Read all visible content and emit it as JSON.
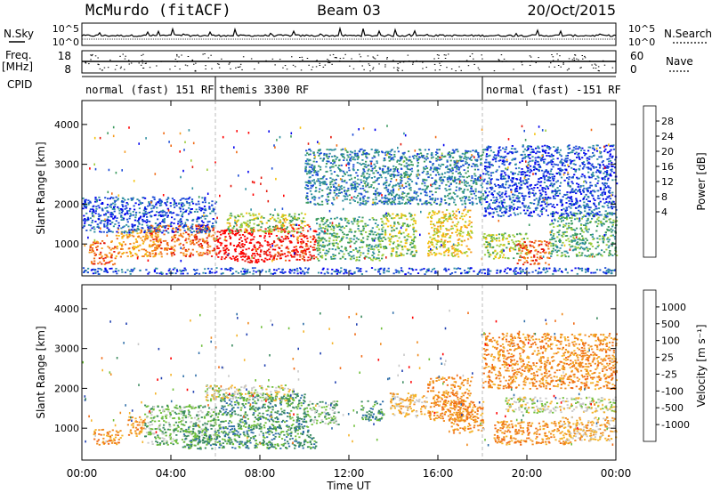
{
  "header": {
    "station": "McMurdo (fitACF)",
    "beam": "Beam 03",
    "date": "20/Oct/2015"
  },
  "top_panels": {
    "nsky_label": "N.Sky",
    "nsky_ticks": [
      "10^5",
      "10^0"
    ],
    "nsearch_label": "N.Search",
    "nsearch_ticks": [
      "10^5",
      "10^0"
    ],
    "freq_label": "Freq.",
    "freq_unit": "[MHz]",
    "freq_ticks": [
      "18",
      "8"
    ],
    "nave_label": "Nave",
    "nave_ticks": [
      "60",
      "0"
    ],
    "cpid_label": "CPID",
    "modes": [
      {
        "label": "normal (fast) 151 RF",
        "start": 0,
        "end": 6
      },
      {
        "label": "themis 3300 RF",
        "start": 6,
        "end": 18
      },
      {
        "label": "normal (fast) -151 RF",
        "start": 18,
        "end": 24
      }
    ]
  },
  "chart_data": [
    {
      "type": "heatmap",
      "name": "power",
      "ylabel": "Slant Range [km]",
      "ylim": [
        200,
        4600
      ],
      "yticks": [
        1000,
        2000,
        3000,
        4000
      ],
      "xlim": [
        0,
        24
      ],
      "colorbar": {
        "label": "Power [dB]",
        "ticks": [
          "28",
          "24",
          "20",
          "16",
          "12",
          "8",
          "4"
        ],
        "colors": [
          "#0000ee",
          "#1a4bd6",
          "#2f8fa0",
          "#3a9a5e",
          "#9bcc3a",
          "#f4c20d",
          "#f59a1e",
          "#f06a14",
          "#e3170a",
          "#ff0000"
        ]
      },
      "bands": [
        {
          "x0": 0.3,
          "x1": 1.5,
          "y0": 500,
          "y1": 1100,
          "level": 7
        },
        {
          "x0": 1.5,
          "x1": 3.5,
          "y0": 700,
          "y1": 1400,
          "level": 6
        },
        {
          "x0": 3.0,
          "x1": 6.0,
          "y0": 700,
          "y1": 1500,
          "level": 7
        },
        {
          "x0": 6.0,
          "x1": 8.5,
          "y0": 550,
          "y1": 1400,
          "level": 9
        },
        {
          "x0": 8.5,
          "x1": 10.5,
          "y0": 600,
          "y1": 1500,
          "level": 8
        },
        {
          "x0": 6.5,
          "x1": 10.0,
          "y0": 1300,
          "y1": 1800,
          "level": 4
        },
        {
          "x0": 10.5,
          "x1": 13.5,
          "y0": 600,
          "y1": 1700,
          "level": 3
        },
        {
          "x0": 13.5,
          "x1": 15.0,
          "y0": 700,
          "y1": 1800,
          "level": 4
        },
        {
          "x0": 15.5,
          "x1": 17.5,
          "y0": 700,
          "y1": 1900,
          "level": 5
        },
        {
          "x0": 18.0,
          "x1": 20.0,
          "y0": 650,
          "y1": 1300,
          "level": 4
        },
        {
          "x0": 19.5,
          "x1": 21.0,
          "y0": 500,
          "y1": 1100,
          "level": 7
        },
        {
          "x0": 21.0,
          "x1": 24.0,
          "y0": 700,
          "y1": 1800,
          "level": 3
        },
        {
          "x0": 0.0,
          "x1": 6.0,
          "y0": 1300,
          "y1": 2200,
          "level": 1
        },
        {
          "x0": 10.0,
          "x1": 18.0,
          "y0": 2000,
          "y1": 3400,
          "level": 2
        },
        {
          "x0": 18.0,
          "x1": 24.0,
          "y0": 1700,
          "y1": 3500,
          "level": 1
        },
        {
          "x0": 0.0,
          "x1": 24.0,
          "y0": 260,
          "y1": 420,
          "level": 1
        }
      ]
    },
    {
      "type": "heatmap",
      "name": "velocity",
      "ylabel": "Slant Range [km]",
      "xlabel": "Time UT",
      "ylim": [
        200,
        4600
      ],
      "yticks": [
        1000,
        2000,
        3000,
        4000
      ],
      "xlim": [
        0,
        24
      ],
      "xticks": [
        "00:00",
        "04:00",
        "08:00",
        "12:00",
        "16:00",
        "20:00",
        "00:00"
      ],
      "colorbar": {
        "label": "Velocity [m s⁻¹]",
        "ticks": [
          "1000",
          "500",
          "100",
          "25",
          "-25",
          "-100",
          "-500",
          "-1000"
        ],
        "colors": [
          "#1f3fb0",
          "#2f6ea8",
          "#3a8a5e",
          "#6fbf3a",
          "#c8c8c8",
          "#f4b32a",
          "#f08a1e",
          "#f06a14",
          "#ff0000"
        ]
      },
      "bands": [
        {
          "x0": 0.5,
          "x1": 1.8,
          "y0": 600,
          "y1": 1000,
          "level": 6
        },
        {
          "x0": 2.0,
          "x1": 2.8,
          "y0": 800,
          "y1": 1300,
          "level": 6
        },
        {
          "x0": 2.8,
          "x1": 4.5,
          "y0": 600,
          "y1": 1600,
          "level": 3
        },
        {
          "x0": 4.5,
          "x1": 6.2,
          "y0": 600,
          "y1": 1600,
          "level": 3
        },
        {
          "x0": 4.5,
          "x1": 10.5,
          "y0": 500,
          "y1": 1100,
          "level": 2
        },
        {
          "x0": 6.2,
          "x1": 10.0,
          "y0": 1000,
          "y1": 1900,
          "level": 2
        },
        {
          "x0": 5.5,
          "x1": 9.5,
          "y0": 1700,
          "y1": 2100,
          "level": 4
        },
        {
          "x0": 10.0,
          "x1": 11.5,
          "y0": 1100,
          "y1": 1700,
          "level": 3
        },
        {
          "x0": 12.5,
          "x1": 13.5,
          "y0": 1200,
          "y1": 1700,
          "level": 2
        },
        {
          "x0": 13.8,
          "x1": 15.5,
          "y0": 1300,
          "y1": 1900,
          "level": 5
        },
        {
          "x0": 15.5,
          "x1": 17.5,
          "y0": 1200,
          "y1": 2300,
          "level": 6
        },
        {
          "x0": 16.5,
          "x1": 18.0,
          "y0": 900,
          "y1": 1700,
          "level": 6
        },
        {
          "x0": 18.5,
          "x1": 22.0,
          "y0": 600,
          "y1": 1200,
          "level": 6
        },
        {
          "x0": 19.0,
          "x1": 24.0,
          "y0": 1400,
          "y1": 1800,
          "level": 4
        },
        {
          "x0": 21.5,
          "x1": 24.0,
          "y0": 700,
          "y1": 1300,
          "level": 5
        },
        {
          "x0": 18.0,
          "x1": 24.0,
          "y0": 2000,
          "y1": 3400,
          "level": 6
        }
      ]
    }
  ]
}
